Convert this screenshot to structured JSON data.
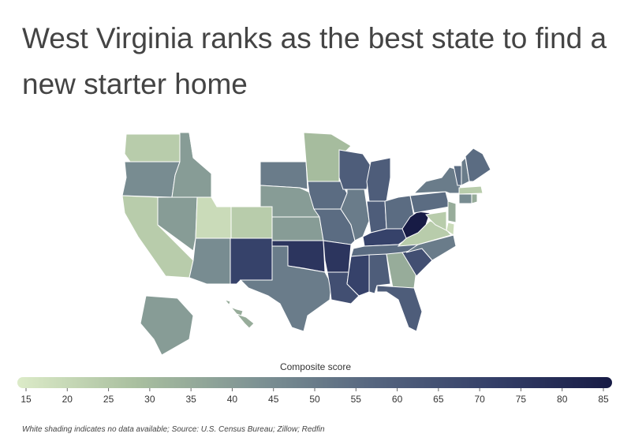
{
  "chart_data": {
    "type": "choropleth",
    "title": "West Virginia ranks as the best state to find a new starter home",
    "legend_title": "Composite score",
    "note": "White shading indicates no data available; Source:  U.S. Census Bureau; Zillow; Redfin",
    "values": [
      25,
      45,
      25,
      40,
      40,
      null,
      null,
      20,
      25,
      45,
      70,
      null,
      50,
      40,
      40,
      75,
      50,
      30,
      55,
      55,
      75,
      65,
      60,
      50,
      60,
      60,
      55,
      70,
      55,
      70,
      60,
      35,
      60,
      65,
      50,
      25,
      85,
      55,
      50,
      55,
      50,
      55,
      25,
      45,
      35,
      35,
      20,
      25,
      40,
      35
    ],
    "clim": [
      15,
      85
    ],
    "legend_ticks": [
      15,
      20,
      25,
      30,
      35,
      40,
      45,
      50,
      55,
      60,
      65,
      70,
      75,
      80,
      85
    ],
    "colorscale": [
      "#dcebc8",
      "#a9bf9f",
      "#7e9394",
      "#55657f",
      "#343f68",
      "#171b45"
    ],
    "missing_color": "#ffffff"
  }
}
